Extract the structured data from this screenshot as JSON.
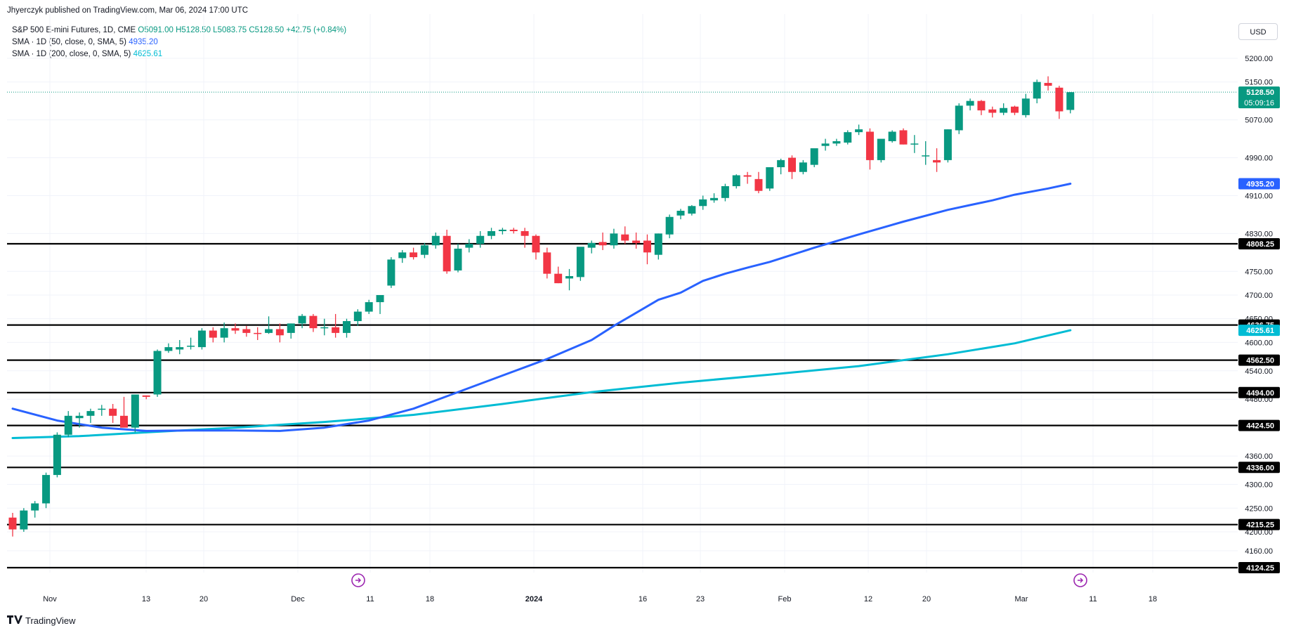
{
  "header": {
    "published": "Jhyerczyk published on TradingView.com, Mar 06, 2024 17:00 UTC"
  },
  "legend": {
    "symbol": "S&P 500 E-mini Futures, 1D, CME",
    "ohlc": "O5091.00 H5128.50 L5083.75 C5128.50 +42.75 (+0.84%)",
    "sma50_label": "SMA · 1D (50, close, 0, SMA, 5)",
    "sma50_value": "4935.20",
    "sma200_label": "SMA · 1D (200, close, 0, SMA, 5)",
    "sma200_value": "4625.61"
  },
  "currency_button": "USD",
  "brand": {
    "name": "TradingView",
    "icon": "tradingview-logo-icon"
  },
  "colors": {
    "up": "#089981",
    "down": "#f23645",
    "sma50": "#2962ff",
    "sma200": "#00bcd4",
    "price_line": "#089981"
  },
  "chart_data": {
    "type": "candlestick",
    "instrument": "S&P 500 E-mini Futures",
    "timeframe": "1D",
    "ylim": [
      4090,
      5240
    ],
    "y_ticks": [
      "5200.00",
      "5150.00",
      "5070.00",
      "4990.00",
      "4910.00",
      "4830.00",
      "4750.00",
      "4700.00",
      "4650.00",
      "4600.00",
      "4540.00",
      "4480.00",
      "4360.00",
      "4300.00",
      "4250.00",
      "4200.00",
      "4160.00"
    ],
    "x_ticks": [
      "Nov",
      "13",
      "20",
      "Dec",
      "11",
      "18",
      "2024",
      "16",
      "23",
      "Feb",
      "12",
      "20",
      "Mar",
      "11",
      "18"
    ],
    "x_ticks_bold": [
      "2024"
    ],
    "current_price": {
      "value": "5128.50",
      "countdown": "05:09:16"
    },
    "sma50_tag": "4935.20",
    "sma200_tag": "4625.61",
    "horizontal_levels": [
      "4808.25",
      "4636.75",
      "4562.50",
      "4494.00",
      "4424.50",
      "4336.00",
      "4215.25",
      "4124.25"
    ],
    "candles": [
      [
        4230,
        4240,
        4190,
        4205
      ],
      [
        4205,
        4250,
        4200,
        4245
      ],
      [
        4245,
        4265,
        4230,
        4260
      ],
      [
        4260,
        4325,
        4250,
        4320
      ],
      [
        4320,
        4410,
        4315,
        4405
      ],
      [
        4405,
        4455,
        4400,
        4445
      ],
      [
        4440,
        4452,
        4420,
        4445
      ],
      [
        4445,
        4460,
        4430,
        4455
      ],
      [
        4458,
        4468,
        4445,
        4460
      ],
      [
        4460,
        4470,
        4430,
        4445
      ],
      [
        4445,
        4485,
        4425,
        4420
      ],
      [
        4420,
        4490,
        4410,
        4490
      ],
      [
        4488,
        4488,
        4480,
        4485
      ],
      [
        4490,
        4585,
        4485,
        4582
      ],
      [
        4582,
        4598,
        4578,
        4590
      ],
      [
        4585,
        4605,
        4575,
        4590
      ],
      [
        4592,
        4610,
        4585,
        4593
      ],
      [
        4590,
        4630,
        4585,
        4625
      ],
      [
        4625,
        4632,
        4600,
        4610
      ],
      [
        4610,
        4642,
        4600,
        4630
      ],
      [
        4630,
        4640,
        4618,
        4625
      ],
      [
        4628,
        4635,
        4612,
        4620
      ],
      [
        4620,
        4632,
        4605,
        4619
      ],
      [
        4620,
        4655,
        4618,
        4628
      ],
      [
        4628,
        4640,
        4600,
        4615
      ],
      [
        4620,
        4640,
        4608,
        4640
      ],
      [
        4640,
        4660,
        4630,
        4656
      ],
      [
        4656,
        4660,
        4622,
        4630
      ],
      [
        4630,
        4650,
        4615,
        4632
      ],
      [
        4632,
        4660,
        4610,
        4620
      ],
      [
        4620,
        4650,
        4610,
        4645
      ],
      [
        4645,
        4670,
        4635,
        4665
      ],
      [
        4665,
        4690,
        4660,
        4685
      ],
      [
        4685,
        4695,
        4660,
        4700
      ],
      [
        4720,
        4780,
        4715,
        4775
      ],
      [
        4778,
        4795,
        4768,
        4790
      ],
      [
        4790,
        4800,
        4775,
        4780
      ],
      [
        4785,
        4810,
        4778,
        4805
      ],
      [
        4805,
        4832,
        4798,
        4825
      ],
      [
        4825,
        4838,
        4745,
        4750
      ],
      [
        4752,
        4808,
        4748,
        4798
      ],
      [
        4800,
        4818,
        4790,
        4808
      ],
      [
        4808,
        4835,
        4800,
        4825
      ],
      [
        4825,
        4842,
        4818,
        4835
      ],
      [
        4835,
        4842,
        4828,
        4838
      ],
      [
        4838,
        4842,
        4830,
        4835
      ],
      [
        4835,
        4842,
        4800,
        4825
      ],
      [
        4825,
        4828,
        4775,
        4790
      ],
      [
        4790,
        4800,
        4735,
        4745
      ],
      [
        4745,
        4760,
        4725,
        4725
      ],
      [
        4735,
        4755,
        4710,
        4740
      ],
      [
        4738,
        4800,
        4730,
        4802
      ],
      [
        4800,
        4815,
        4788,
        4810
      ],
      [
        4812,
        4832,
        4795,
        4805
      ],
      [
        4805,
        4840,
        4798,
        4830
      ],
      [
        4828,
        4845,
        4808,
        4815
      ],
      [
        4815,
        4832,
        4798,
        4810
      ],
      [
        4815,
        4828,
        4765,
        4790
      ],
      [
        4785,
        4830,
        4775,
        4830
      ],
      [
        4828,
        4870,
        4820,
        4865
      ],
      [
        4868,
        4882,
        4860,
        4878
      ],
      [
        4872,
        4890,
        4868,
        4888
      ],
      [
        4888,
        4910,
        4880,
        4902
      ],
      [
        4900,
        4915,
        4895,
        4905
      ],
      [
        4905,
        4935,
        4898,
        4930
      ],
      [
        4930,
        4955,
        4925,
        4953
      ],
      [
        4953,
        4960,
        4935,
        4950
      ],
      [
        4945,
        4960,
        4915,
        4920
      ],
      [
        4925,
        4970,
        4920,
        4970
      ],
      [
        4970,
        4988,
        4955,
        4985
      ],
      [
        4990,
        4995,
        4945,
        4960
      ],
      [
        4960,
        4985,
        4955,
        4980
      ],
      [
        4975,
        5000,
        4970,
        5010
      ],
      [
        5015,
        5030,
        5005,
        5020
      ],
      [
        5020,
        5030,
        5015,
        5025
      ],
      [
        5022,
        5048,
        5018,
        5044
      ],
      [
        5044,
        5060,
        5038,
        5050
      ],
      [
        5045,
        5052,
        4965,
        4985
      ],
      [
        4985,
        5025,
        4980,
        5030
      ],
      [
        5025,
        5048,
        5022,
        5045
      ],
      [
        5048,
        5052,
        5018,
        5018
      ],
      [
        5020,
        5038,
        5000,
        5020
      ],
      [
        4995,
        5025,
        4975,
        4995
      ],
      [
        4985,
        5010,
        4960,
        4980
      ],
      [
        4985,
        5050,
        4980,
        5050
      ],
      [
        5048,
        5105,
        5040,
        5100
      ],
      [
        5100,
        5115,
        5090,
        5110
      ],
      [
        5110,
        5112,
        5080,
        5090
      ],
      [
        5092,
        5098,
        5075,
        5085
      ],
      [
        5085,
        5105,
        5080,
        5095
      ],
      [
        5098,
        5100,
        5080,
        5085
      ],
      [
        5080,
        5125,
        5075,
        5115
      ],
      [
        5115,
        5155,
        5105,
        5150
      ],
      [
        5148,
        5162,
        5132,
        5142
      ],
      [
        5138,
        5142,
        5072,
        5088
      ],
      [
        5091,
        5128.5,
        5083.75,
        5128.5
      ]
    ],
    "sma50_points": [
      [
        0,
        4460
      ],
      [
        4,
        4435
      ],
      [
        8,
        4420
      ],
      [
        12,
        4413
      ],
      [
        16,
        4414
      ],
      [
        20,
        4414
      ],
      [
        24,
        4413
      ],
      [
        28,
        4420
      ],
      [
        32,
        4435
      ],
      [
        36,
        4460
      ],
      [
        40,
        4495
      ],
      [
        44,
        4530
      ],
      [
        48,
        4565
      ],
      [
        52,
        4605
      ],
      [
        54,
        4635
      ],
      [
        58,
        4690
      ],
      [
        60,
        4705
      ],
      [
        62,
        4730
      ],
      [
        64,
        4745
      ],
      [
        66,
        4758
      ],
      [
        68,
        4770
      ],
      [
        72,
        4800
      ],
      [
        76,
        4828
      ],
      [
        80,
        4855
      ],
      [
        84,
        4880
      ],
      [
        86,
        4890
      ],
      [
        88,
        4900
      ],
      [
        90,
        4912
      ],
      [
        93,
        4925
      ],
      [
        95,
        4935.2
      ]
    ],
    "sma200_points": [
      [
        0,
        4398
      ],
      [
        6,
        4402
      ],
      [
        12,
        4410
      ],
      [
        20,
        4420
      ],
      [
        28,
        4432
      ],
      [
        36,
        4447
      ],
      [
        44,
        4470
      ],
      [
        52,
        4495
      ],
      [
        60,
        4515
      ],
      [
        68,
        4532
      ],
      [
        76,
        4550
      ],
      [
        84,
        4575
      ],
      [
        90,
        4598
      ],
      [
        95,
        4625.61
      ]
    ]
  }
}
